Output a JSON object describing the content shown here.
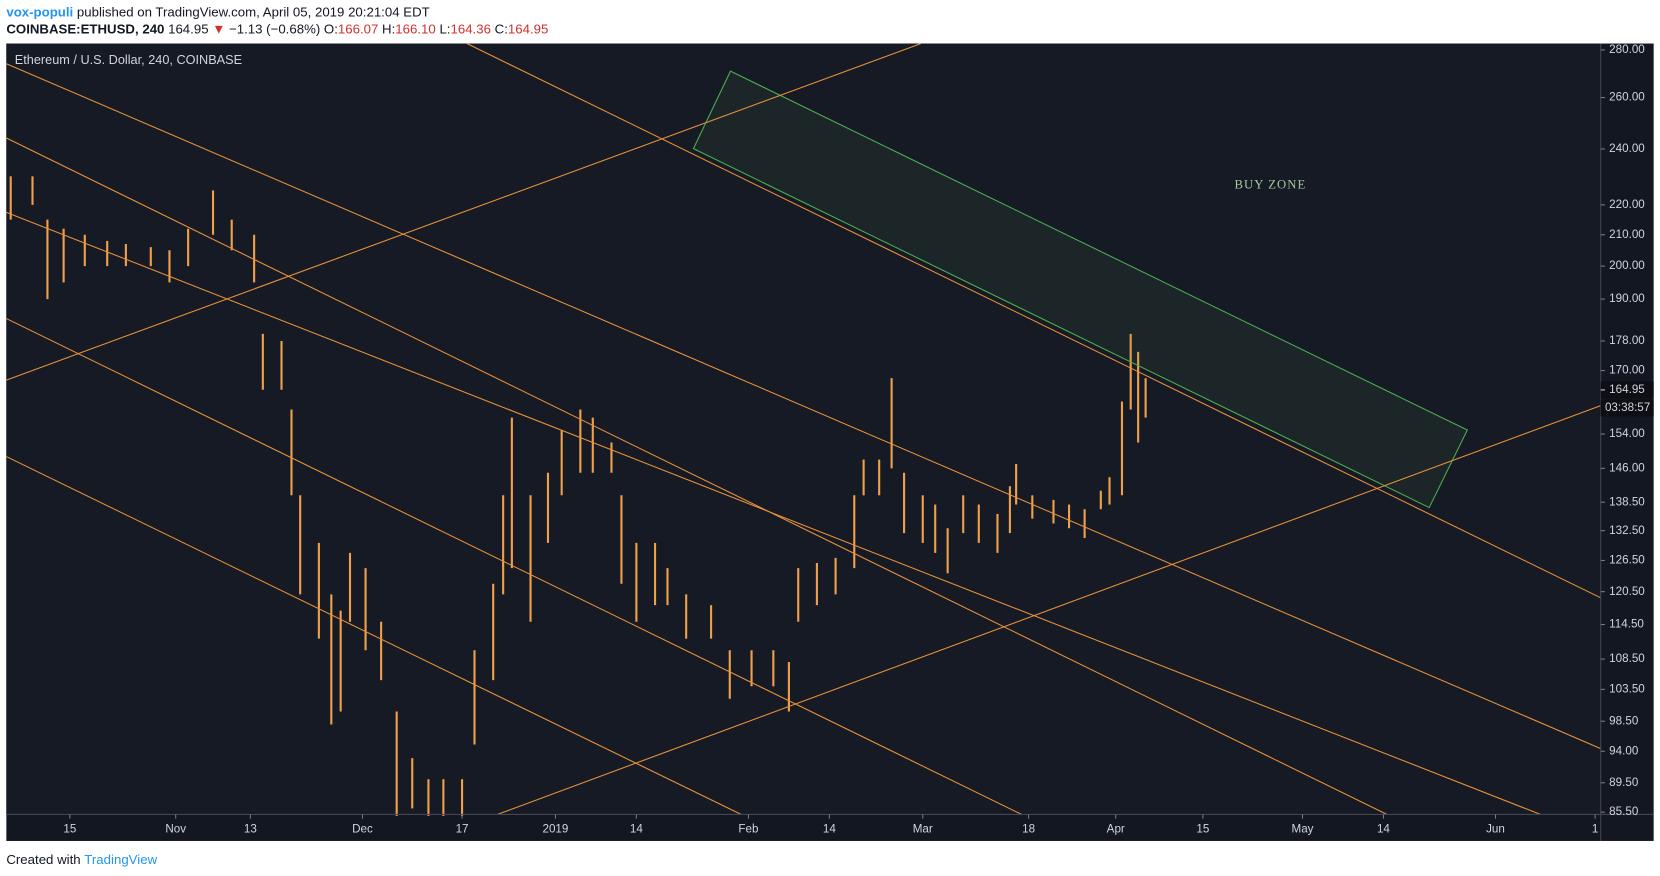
{
  "header": {
    "author": "vox-populi",
    "published": "published on TradingView.com, April 05, 2019 20:21:04 EDT",
    "symbol": "COINBASE:ETHUSD, 240",
    "last": "164.95",
    "change": "−1.13 (−0.68%)",
    "open_label": "O:",
    "open": "166.07",
    "high_label": "H:",
    "high": "166.10",
    "low_label": "L:",
    "low": "164.36",
    "close_label": "C:",
    "close": "164.95"
  },
  "chart_data": {
    "type": "range",
    "title": "Ethereum / U.S. Dollar, 240, COINBASE",
    "annotation": "BUY ZONE",
    "color": "#f0a04b",
    "log_scale": true,
    "last_price": 164.95,
    "countdown": "03:38:57",
    "xlim": [
      3.8,
      259.9
    ],
    "ylim": [
      85.2,
      282.8
    ],
    "xticks": [
      {
        "value": 14,
        "label": "15"
      },
      {
        "value": 31,
        "label": "Nov"
      },
      {
        "value": 43,
        "label": "13"
      },
      {
        "value": 61,
        "label": "Dec"
      },
      {
        "value": 77,
        "label": "17"
      },
      {
        "value": 92,
        "label": "2019"
      },
      {
        "value": 105,
        "label": "14"
      },
      {
        "value": 123,
        "label": "Feb"
      },
      {
        "value": 136,
        "label": "14"
      },
      {
        "value": 151,
        "label": "Mar"
      },
      {
        "value": 168,
        "label": "18"
      },
      {
        "value": 182,
        "label": "Apr"
      },
      {
        "value": 196,
        "label": "15"
      },
      {
        "value": 212,
        "label": "May"
      },
      {
        "value": 225,
        "label": "14"
      },
      {
        "value": 243,
        "label": "Jun"
      },
      {
        "value": 259,
        "label": "1"
      }
    ],
    "yticks": [
      {
        "value": 280,
        "label": "280.00"
      },
      {
        "value": 260,
        "label": "260.00"
      },
      {
        "value": 240,
        "label": "240.00"
      },
      {
        "value": 220,
        "label": "220.00"
      },
      {
        "value": 210,
        "label": "210.00"
      },
      {
        "value": 200,
        "label": "200.00"
      },
      {
        "value": 190,
        "label": "190.00"
      },
      {
        "value": 178,
        "label": "178.00"
      },
      {
        "value": 170,
        "label": "170.00"
      },
      {
        "value": 154,
        "label": "154.00"
      },
      {
        "value": 146,
        "label": "146.00"
      },
      {
        "value": 138.5,
        "label": "138.50"
      },
      {
        "value": 132.5,
        "label": "132.50"
      },
      {
        "value": 126.5,
        "label": "126.50"
      },
      {
        "value": 120.5,
        "label": "120.50"
      },
      {
        "value": 114.5,
        "label": "114.50"
      },
      {
        "value": 108.5,
        "label": "108.50"
      },
      {
        "value": 103.5,
        "label": "103.50"
      },
      {
        "value": 98.5,
        "label": "98.50"
      },
      {
        "value": 94,
        "label": "94.00"
      },
      {
        "value": 89.5,
        "label": "89.50"
      },
      {
        "value": 85.5,
        "label": "85.50"
      }
    ],
    "x": [
      4.5,
      8,
      10.4,
      13,
      16.4,
      20,
      23,
      27,
      30,
      33,
      37,
      40,
      43.6,
      45,
      48,
      49.6,
      51,
      54,
      56,
      57.5,
      59,
      61.5,
      64,
      66.5,
      69,
      71.6,
      74,
      77,
      79,
      82,
      83.6,
      85,
      88,
      90.8,
      93,
      96,
      98,
      101,
      102.6,
      105,
      108,
      110,
      113,
      117,
      120,
      123.5,
      127,
      129.5,
      131,
      134,
      137,
      140,
      141.5,
      144,
      146,
      148,
      151,
      153,
      155,
      157.5,
      160,
      163,
      165,
      166,
      168.6,
      172,
      174.5,
      177,
      179.6,
      181,
      183,
      184.4,
      185.6,
      186.8
    ],
    "high": [
      230,
      230,
      215,
      212,
      210,
      208,
      207,
      206,
      205,
      212,
      225,
      215,
      210,
      180,
      178,
      160,
      140,
      130,
      120,
      117,
      128,
      125,
      115,
      100,
      93,
      90,
      90,
      90,
      110,
      122,
      140,
      158,
      140,
      145,
      155,
      160,
      158,
      152,
      140,
      130,
      130,
      125,
      120,
      118,
      110,
      110,
      110,
      108,
      125,
      126,
      127,
      140,
      148,
      148,
      168,
      145,
      140,
      138,
      133,
      140,
      138,
      136,
      142,
      147,
      140,
      139,
      138,
      137,
      141,
      144,
      162,
      180,
      175,
      168
    ],
    "low": [
      215,
      220,
      190,
      195,
      200,
      200,
      200,
      200,
      195,
      200,
      210,
      205,
      195,
      165,
      165,
      140,
      120,
      112,
      98,
      100,
      115,
      110,
      105,
      85,
      86,
      85,
      85,
      85,
      95,
      105,
      120,
      125,
      115,
      130,
      140,
      145,
      145,
      145,
      122,
      115,
      118,
      118,
      112,
      112,
      102,
      104,
      104,
      100,
      115,
      118,
      120,
      125,
      140,
      140,
      146,
      132,
      130,
      128,
      124,
      132,
      130,
      128,
      132,
      138,
      135,
      134,
      133,
      131,
      137,
      138,
      140,
      160,
      152,
      158
    ]
  },
  "footer": {
    "created": "Created with",
    "brand": "TradingView"
  }
}
